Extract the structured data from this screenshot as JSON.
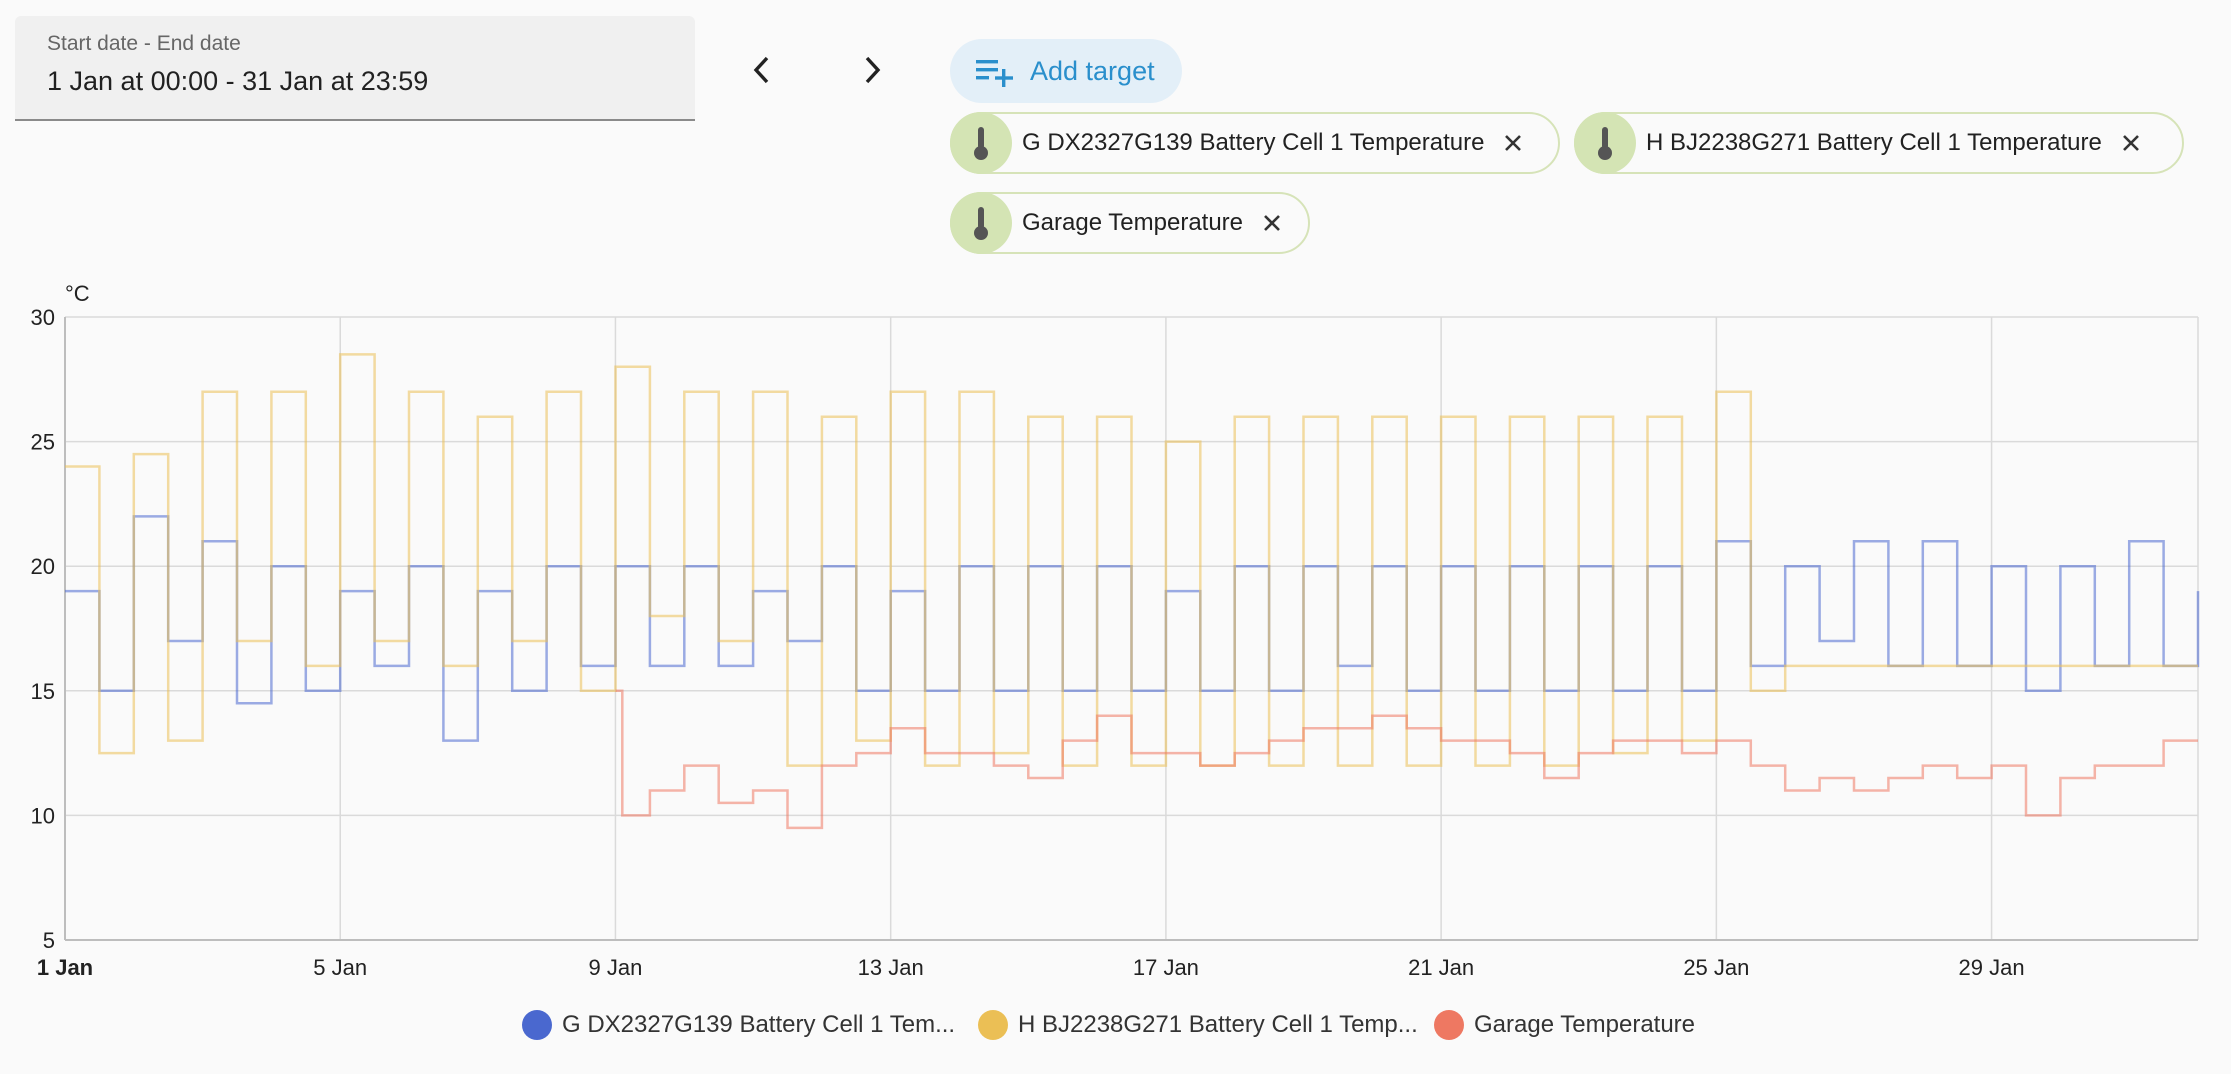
{
  "date_picker": {
    "label": "Start date - End date",
    "value": "1 Jan at 00:00 - 31 Jan at 23:59"
  },
  "nav": {
    "prev_icon": "chevron-left-icon",
    "next_icon": "chevron-right-icon"
  },
  "add_target": {
    "label": "Add target",
    "icon": "playlist-plus-icon",
    "color": "#2a8fcc"
  },
  "targets": [
    {
      "label": "G DX2327G139 Battery Cell 1 Temperature",
      "icon": "thermometer-icon"
    },
    {
      "label": "H BJ2238G271 Battery Cell 1 Temperature",
      "icon": "thermometer-icon"
    },
    {
      "label": "Garage Temperature",
      "icon": "thermometer-icon"
    }
  ],
  "legend": [
    {
      "label": "G DX2327G139 Battery Cell 1 Tem...",
      "color": "#4a68cf"
    },
    {
      "label": "H BJ2238G271 Battery Cell 1 Temp...",
      "color": "#ebbf55"
    },
    {
      "label": "Garage Temperature",
      "color": "#ee7862"
    }
  ],
  "chart_data": {
    "type": "line",
    "unit": "°C",
    "ylim": [
      5,
      30
    ],
    "y_ticks": [
      5,
      10,
      15,
      20,
      25,
      30
    ],
    "xlim_days": [
      1,
      32
    ],
    "x_ticks": [
      "1 Jan",
      "5 Jan",
      "9 Jan",
      "13 Jan",
      "17 Jan",
      "21 Jan",
      "25 Jan",
      "29 Jan"
    ],
    "grid": true,
    "legend_position": "bottom",
    "series": [
      {
        "name": "G DX2327G139 Battery Cell 1 Temperature",
        "color": "#4a68cf",
        "x": [
          1,
          1.5,
          2,
          2.5,
          3,
          3.5,
          4,
          4.5,
          5,
          5.5,
          6,
          6.5,
          7,
          7.5,
          8,
          8.5,
          9,
          9.5,
          10,
          10.5,
          11,
          11.5,
          12,
          12.5,
          13,
          13.5,
          14,
          14.5,
          15,
          15.5,
          16,
          16.5,
          17,
          17.5,
          18,
          18.5,
          19,
          19.5,
          20,
          20.5,
          21,
          21.5,
          22,
          22.5,
          23,
          23.5,
          24,
          24.5,
          25,
          25.5,
          26,
          26.5,
          27,
          27.5,
          28,
          28.5,
          29,
          29.5,
          30,
          30.5,
          31,
          31.5,
          32
        ],
        "y": [
          19,
          15,
          22,
          17,
          21,
          14.5,
          20,
          15,
          19,
          16,
          20,
          13,
          19,
          15,
          20,
          16,
          20,
          16,
          20,
          16,
          19,
          17,
          20,
          15,
          19,
          15,
          20,
          15,
          20,
          15,
          20,
          15,
          19,
          15,
          20,
          15,
          20,
          16,
          20,
          15,
          20,
          15,
          20,
          15,
          20,
          15,
          20,
          15,
          21,
          16,
          20,
          17,
          21,
          16,
          21,
          16,
          20,
          15,
          20,
          16,
          21,
          16,
          19
        ]
      },
      {
        "name": "H BJ2238G271 Battery Cell 1 Temperature",
        "color": "#ebbf55",
        "x": [
          1,
          1.5,
          2,
          2.5,
          3,
          3.5,
          4,
          4.5,
          5,
          5.5,
          6,
          6.5,
          7,
          7.5,
          8,
          8.5,
          9,
          9.5,
          10,
          10.5,
          11,
          11.5,
          12,
          12.5,
          13,
          13.5,
          14,
          14.5,
          15,
          15.5,
          16,
          16.5,
          17,
          17.5,
          18,
          18.5,
          19,
          19.5,
          20,
          20.5,
          21,
          21.5,
          22,
          22.5,
          23,
          23.5,
          24,
          24.5,
          25,
          25.5,
          26,
          32
        ],
        "y": [
          24,
          12.5,
          24.5,
          13,
          27,
          17,
          27,
          16,
          28.5,
          17,
          27,
          16,
          26,
          17,
          27,
          15,
          28,
          18,
          27,
          17,
          27,
          12,
          26,
          13,
          27,
          12,
          27,
          12.5,
          26,
          12,
          26,
          12,
          25,
          12,
          26,
          12,
          26,
          12,
          26,
          12,
          26,
          12,
          26,
          12,
          26,
          12.5,
          26,
          13,
          27,
          15,
          16,
          16
        ]
      },
      {
        "name": "Garage Temperature",
        "color": "#ee7862",
        "x": [
          9,
          9.1,
          9.5,
          10,
          10.5,
          11,
          11.5,
          12,
          12.5,
          13,
          13.5,
          14,
          14.5,
          15,
          15.5,
          16,
          16.5,
          17,
          17.5,
          18,
          18.5,
          19,
          19.5,
          20,
          20.5,
          21,
          21.5,
          22,
          22.5,
          23,
          23.5,
          24,
          24.5,
          25,
          25.5,
          26,
          26.5,
          27,
          27.5,
          28,
          28.5,
          29,
          29.5,
          30,
          30.5,
          31,
          31.5,
          32
        ],
        "y": [
          15,
          10,
          11,
          12,
          10.5,
          11,
          9.5,
          12,
          12.5,
          13.5,
          12.5,
          12.5,
          12,
          11.5,
          13,
          14,
          12.5,
          12.5,
          12,
          12.5,
          13,
          13.5,
          13.5,
          14,
          13.5,
          13,
          13,
          12.5,
          11.5,
          12.5,
          13,
          13,
          12.5,
          13,
          12,
          11,
          11.5,
          11,
          11.5,
          12,
          11.5,
          12,
          10,
          11.5,
          12,
          12,
          13,
          13
        ]
      }
    ]
  }
}
